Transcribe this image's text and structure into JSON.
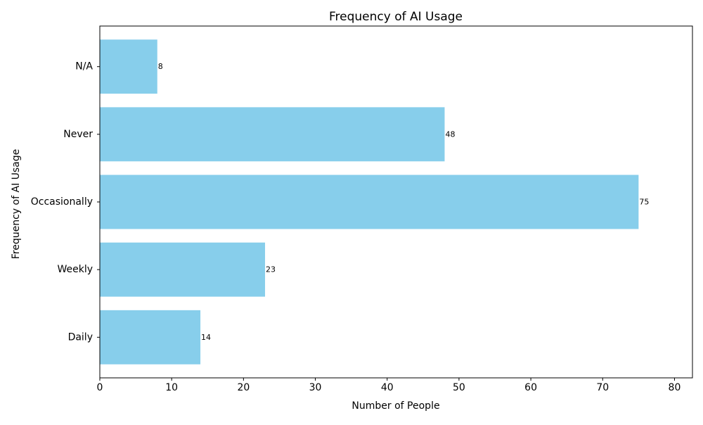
{
  "chart_data": {
    "type": "bar",
    "orientation": "horizontal",
    "title": "Frequency of AI Usage",
    "xlabel": "Number of People",
    "ylabel": "Frequency of AI Usage",
    "categories": [
      "Daily",
      "Weekly",
      "Occasionally",
      "Never",
      "N/A"
    ],
    "values": [
      14,
      23,
      75,
      48,
      8
    ],
    "data_labels": [
      "14",
      "23",
      "75",
      "48",
      "8"
    ],
    "xlim": [
      0,
      82.5
    ],
    "xticks": [
      0,
      10,
      20,
      30,
      40,
      50,
      60,
      70,
      80
    ],
    "xtick_labels": [
      "0",
      "10",
      "20",
      "30",
      "40",
      "50",
      "60",
      "70",
      "80"
    ],
    "grid": false,
    "legend": "none",
    "bar_color": "#87ceeb"
  }
}
